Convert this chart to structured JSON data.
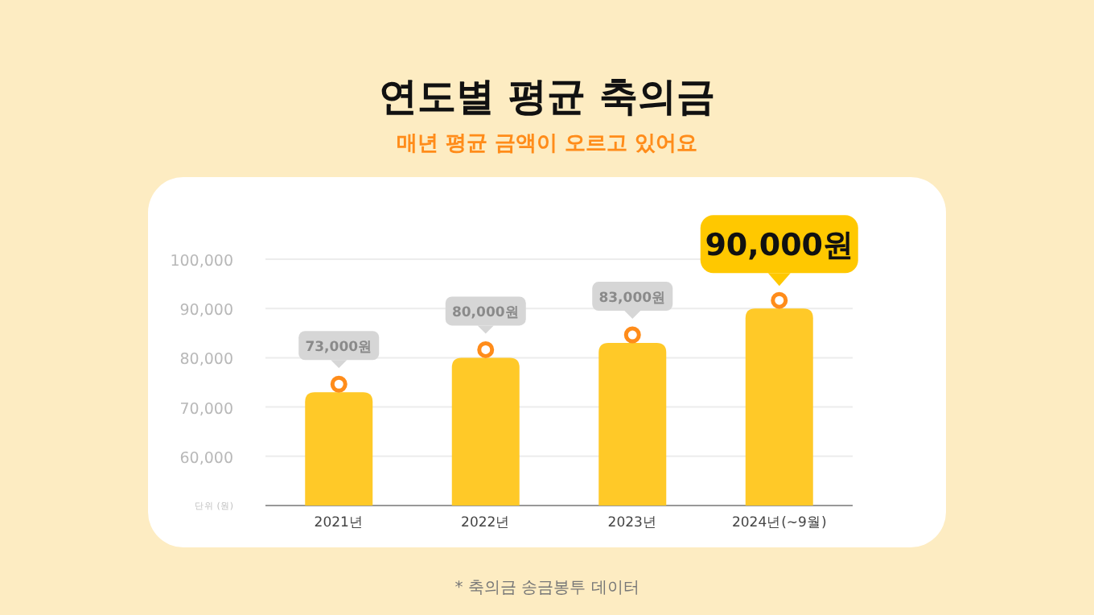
{
  "chart_data": {
    "type": "bar",
    "title": "연도별 평균 축의금",
    "subtitle": "매년 평균 금액이 오르고 있어요",
    "ylabel": "단위 (원)",
    "categories": [
      "2021년",
      "2022년",
      "2023년",
      "2024년(~9월)"
    ],
    "values": [
      73000,
      80000,
      83000,
      90000
    ],
    "value_labels": [
      "73,000원",
      "80,000원",
      "83,000원",
      "90,000원"
    ],
    "color": "#ffc928",
    "grid": "y",
    "ylim": [
      50000,
      100000
    ],
    "yticks": [
      {
        "value": 60000,
        "label": "60,000"
      },
      {
        "value": 70000,
        "label": "70,000"
      },
      {
        "value": 80000,
        "label": "80,000"
      },
      {
        "value": 90000,
        "label": "90,000"
      },
      {
        "value": 100000,
        "label": "100,000"
      }
    ],
    "annotations": [
      "* 축의금 송금봉투 데이터"
    ]
  }
}
